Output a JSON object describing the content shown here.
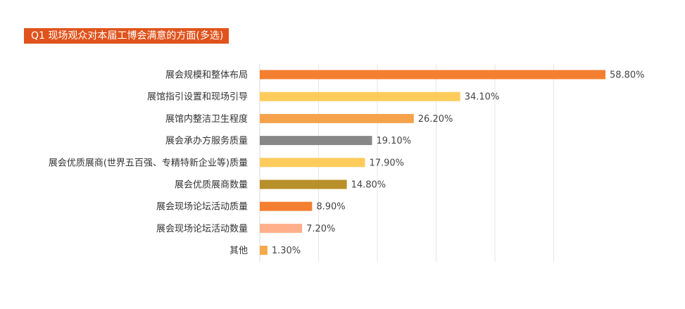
{
  "chart_data": {
    "type": "bar",
    "orientation": "horizontal",
    "title": "Q1 现场观众对本届工博会满意的方面(多选)",
    "categories": [
      "展会规模和整体布局",
      "展馆指引设置和现场引导",
      "展馆内整洁卫生程度",
      "展会承办方服务质量",
      "展会优质展商(世界五百强、专精特新企业等)质量",
      "展会优质展商数量",
      "展会现场论坛活动质量",
      "展会现场论坛活动数量",
      "其他"
    ],
    "values": [
      58.8,
      34.1,
      26.2,
      19.1,
      17.9,
      14.8,
      8.9,
      7.2,
      1.3
    ],
    "labels": [
      "58.80%",
      "34.10%",
      "26.20%",
      "19.10%",
      "17.90%",
      "14.80%",
      "8.90%",
      "7.20%",
      "1.30%"
    ],
    "colors": [
      "#F47F30",
      "#FFCC5C",
      "#F5A24A",
      "#878787",
      "#FFCC5C",
      "#B8902A",
      "#F47F30",
      "#FFB08A",
      "#F5A94A"
    ],
    "xlim": [
      0,
      60
    ],
    "grid": true,
    "title_bg": "#E0531C"
  }
}
